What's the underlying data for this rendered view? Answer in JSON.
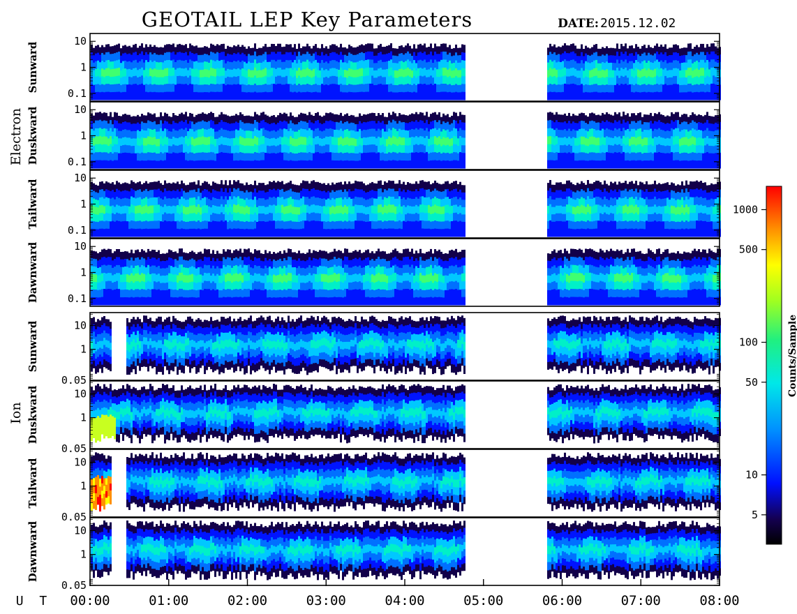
{
  "chart_data": {
    "type": "heatmap",
    "title": "GEOTAIL LEP Key Parameters",
    "date_label": "DATE:",
    "date_value": "2015.12.02",
    "x_axis": {
      "label": "U T",
      "range": [
        "00:00",
        "08:00"
      ],
      "ticks": [
        "00:00",
        "01:00",
        "02:00",
        "03:00",
        "04:00",
        "05:00",
        "06:00",
        "07:00",
        "08:00"
      ]
    },
    "data_gap": {
      "start": "04:45",
      "end": "05:48"
    },
    "groups": [
      {
        "name": "Electron",
        "y_scale": "log",
        "y_range": [
          0.05,
          20
        ],
        "y_ticks": [
          "10",
          "1",
          "0.1"
        ],
        "panels": [
          "Sunward",
          "Duskward",
          "Tailward",
          "Dawnward"
        ]
      },
      {
        "name": "Ion",
        "y_scale": "log",
        "y_range": [
          0.05,
          35
        ],
        "y_ticks": [
          "10",
          "1",
          "0.05"
        ],
        "panels": [
          "Sunward",
          "Duskward",
          "Tailward",
          "Dawnward"
        ]
      }
    ],
    "colorbar": {
      "label": "Counts/Sample",
      "scale": "log",
      "range": [
        3,
        1500
      ],
      "ticks": [
        "1000",
        "500",
        "100",
        "50",
        "10",
        "5"
      ]
    }
  }
}
